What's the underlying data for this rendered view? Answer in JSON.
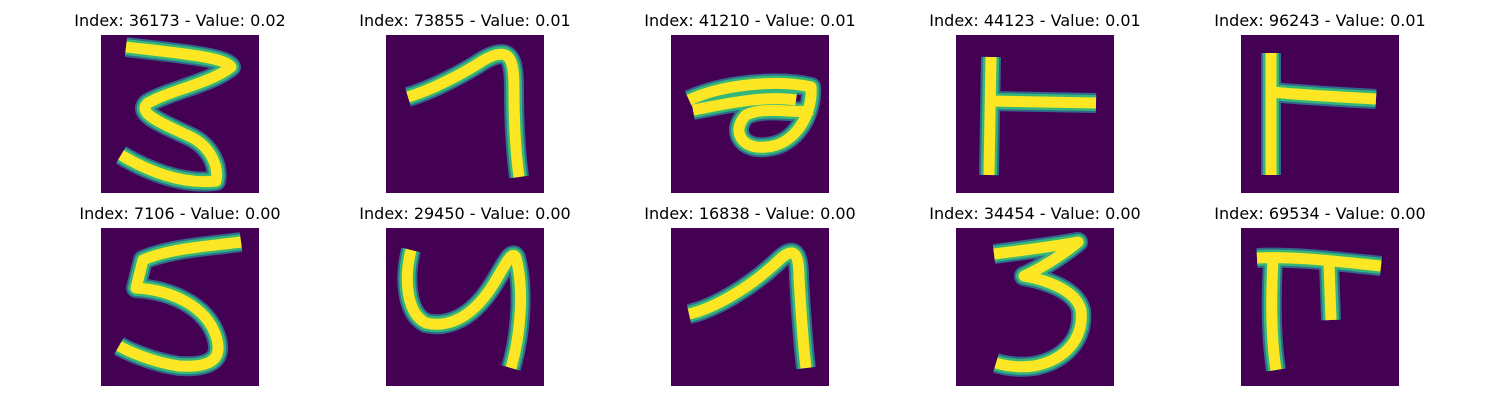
{
  "figure": {
    "colormap": {
      "background": "#440154",
      "edge_outer": "#31688e",
      "edge_inner": "#35b779",
      "stroke": "#fde725"
    },
    "panels": [
      {
        "title": "Index: 36173 - Value: 0.02",
        "index": 36173,
        "value": 0.02,
        "depicts": "digit 3"
      },
      {
        "title": "Index: 73855 - Value: 0.01",
        "index": 73855,
        "value": 0.01,
        "depicts": "digit 1"
      },
      {
        "title": "Index: 41210 - Value: 0.01",
        "index": 41210,
        "value": 0.01,
        "depicts": "digit 6 (rotated)"
      },
      {
        "title": "Index: 44123 - Value: 0.01",
        "index": 44123,
        "value": 0.01,
        "depicts": "digit 1 (rotated)"
      },
      {
        "title": "Index: 96243 - Value: 0.01",
        "index": 96243,
        "value": 0.01,
        "depicts": "digit 1 (rotated)"
      },
      {
        "title": "Index: 7106 - Value: 0.00",
        "index": 7106,
        "value": 0.0,
        "depicts": "digit 5"
      },
      {
        "title": "Index: 29450 - Value: 0.00",
        "index": 29450,
        "value": 0.0,
        "depicts": "digit 4"
      },
      {
        "title": "Index: 16838 - Value: 0.00",
        "index": 16838,
        "value": 0.0,
        "depicts": "digit 1"
      },
      {
        "title": "Index: 34454 - Value: 0.00",
        "index": 34454,
        "value": 0.0,
        "depicts": "digit 3"
      },
      {
        "title": "Index: 69534 - Value: 0.00",
        "index": 69534,
        "value": 0.0,
        "depicts": "digit 7 (rotated)"
      }
    ]
  }
}
